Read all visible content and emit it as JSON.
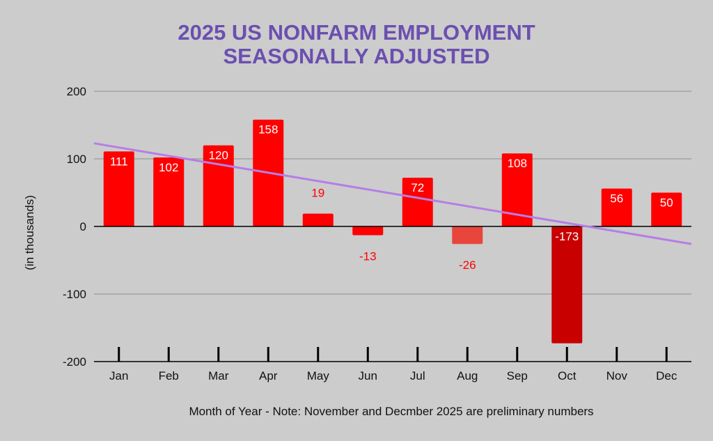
{
  "chart_data": {
    "type": "bar",
    "title_line1": "2025 US NONFARM EMPLOYMENT",
    "title_line2": "SEASONALLY ADJUSTED",
    "ylabel": "(in thousands)",
    "xlabel": "Month of Year - Note:  November and Decmber 2025 are preliminary numbers",
    "categories": [
      "Jan",
      "Feb",
      "Mar",
      "Apr",
      "May",
      "Jun",
      "Jul",
      "Aug",
      "Sep",
      "Oct",
      "Nov",
      "Dec"
    ],
    "values": [
      111,
      102,
      120,
      158,
      19,
      -13,
      72,
      -26,
      108,
      -173,
      56,
      50
    ],
    "value_labels": [
      "111",
      "102",
      "120",
      "158",
      "19",
      "-13",
      "72",
      "-26",
      "108",
      "-173",
      "56",
      "50"
    ],
    "bar_colors": [
      "#ff0000",
      "#ff0000",
      "#ff0000",
      "#ff0000",
      "#ff0000",
      "#ff0000",
      "#ff0000",
      "#e8463c",
      "#ff0000",
      "#c80000",
      "#ff0000",
      "#ff0000"
    ],
    "ylim": [
      -200,
      200
    ],
    "yticks": [
      -200,
      -100,
      0,
      100,
      200
    ],
    "ytick_labels": [
      "-200",
      "-100",
      "0",
      "100",
      "200"
    ],
    "grid": true,
    "trendline": {
      "type": "linear",
      "start_value": 123,
      "end_value": -26,
      "color": "#b57ee6"
    },
    "colors": {
      "title": "#6b4fb0",
      "background": "#cccccc",
      "grid": "#9a9a9a",
      "label_outside": "#ff0000",
      "label_inside": "#ffffff"
    }
  }
}
